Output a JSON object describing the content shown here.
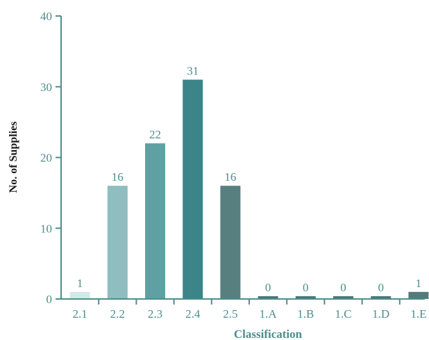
{
  "chart_data": {
    "type": "bar",
    "title": "",
    "xlabel": "Classification",
    "ylabel": "No. of Supplies",
    "categories": [
      "2.1",
      "2.2",
      "2.3",
      "2.4",
      "2.5",
      "1.A",
      "1.B",
      "1.C",
      "1.D",
      "1.E"
    ],
    "values": [
      1,
      16,
      22,
      31,
      16,
      0,
      0,
      0,
      0,
      1
    ],
    "data_labels": [
      "1",
      "16",
      "22",
      "31",
      "16",
      "0",
      "0",
      "0",
      "0",
      "1"
    ],
    "ylim": [
      0,
      40
    ],
    "yticks": [
      0,
      10,
      20,
      30,
      40
    ],
    "ytick_labels": [
      "0",
      "10",
      "20",
      "30",
      "40"
    ],
    "grid": false,
    "legend": "none",
    "bar_colors": [
      "#d3e9e7",
      "#8fbdc0",
      "#5fa1a3",
      "#3b8488",
      "#587f80",
      "#4d7677",
      "#4d7677",
      "#4d7677",
      "#4d7677",
      "#557a7b"
    ],
    "colors": {
      "axis": "#4d8d8d",
      "tick_text": "#4d8d8d",
      "data_label_text": "#4d8d8d",
      "xlabel_text": "#4d8d8d",
      "ylabel_text": "#1a1a1a"
    }
  }
}
